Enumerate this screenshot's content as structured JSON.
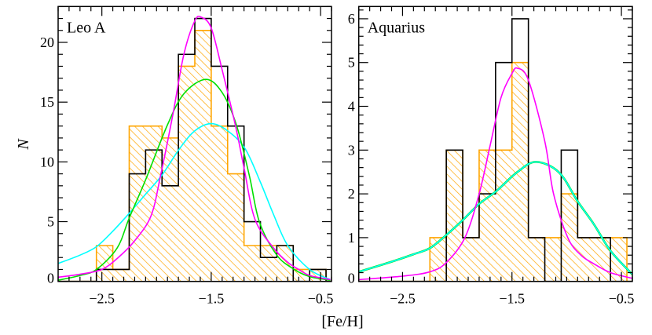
{
  "figure": {
    "xlabel": "[Fe/H]",
    "ylabel": "N"
  },
  "chart_data": [
    {
      "type": "bar",
      "label": "Leo A",
      "xlabel": "[Fe/H]",
      "ylabel": "N",
      "xlim": [
        -2.9,
        -0.4
      ],
      "ylim": [
        0,
        23
      ],
      "x_major_ticks": [
        -2.5,
        -1.5,
        -0.5
      ],
      "x_tick_labels": [
        "−2.5",
        "−1.5",
        "−0.5"
      ],
      "y_major_ticks": [
        0,
        5,
        10,
        15,
        20
      ],
      "y_tick_labels": [
        "0",
        "5",
        "10",
        "15",
        "20"
      ],
      "bin_edges": [
        -2.55,
        -2.4,
        -2.25,
        -2.1,
        -1.95,
        -1.8,
        -1.65,
        -1.5,
        -1.35,
        -1.2,
        -1.05,
        -0.9,
        -0.75,
        -0.6,
        -0.45
      ],
      "histograms": [
        {
          "color": "#FFA500",
          "hatched": true,
          "values": [
            3,
            1,
            13,
            13,
            12,
            18,
            21,
            13,
            9,
            3,
            3,
            3,
            1,
            1
          ]
        },
        {
          "color": "#000000",
          "hatched": false,
          "values": [
            1,
            1,
            9,
            11,
            8,
            19,
            22,
            18,
            13,
            5,
            2,
            3,
            0,
            1
          ]
        }
      ],
      "curves": [
        {
          "color": "#00FFFF",
          "x": [
            -2.9,
            -2.7,
            -2.55,
            -2.4,
            -2.24,
            -2.1,
            -1.95,
            -1.79,
            -1.65,
            -1.5,
            -1.35,
            -1.19,
            -1.05,
            -0.93,
            -0.8,
            -0.6,
            -0.41
          ],
          "y": [
            1.5,
            2.2,
            2.9,
            4.2,
            5.8,
            7.3,
            8.9,
            11.1,
            12.6,
            13.2,
            12.6,
            11.1,
            8.3,
            5.6,
            3.0,
            1.0,
            0.15
          ]
        },
        {
          "color": "#00E000",
          "x": [
            -2.9,
            -2.7,
            -2.55,
            -2.36,
            -2.25,
            -2.1,
            -1.9,
            -1.75,
            -1.55,
            -1.4,
            -1.27,
            -1.15,
            -1.06,
            -0.9,
            -0.74,
            -0.6,
            -0.41
          ],
          "y": [
            0.1,
            0.5,
            1.0,
            2.8,
            5.3,
            8.5,
            13.1,
            15.7,
            16.9,
            15.8,
            13.1,
            8.8,
            5.0,
            2.2,
            1.0,
            0.4,
            0.1
          ]
        },
        {
          "color": "#FF00FF",
          "x": [
            -2.9,
            -2.7,
            -2.5,
            -2.35,
            -2.2,
            -2.05,
            -1.96,
            -1.85,
            -1.75,
            -1.65,
            -1.59,
            -1.5,
            -1.4,
            -1.28,
            -1.2,
            -1.1,
            -0.93,
            -0.8,
            -0.7,
            -0.6,
            -0.41
          ],
          "y": [
            0.35,
            0.6,
            1.0,
            2.0,
            3.4,
            5.5,
            9.0,
            14.0,
            19.0,
            21.8,
            22.1,
            21.2,
            17.7,
            13.1,
            9.5,
            5.2,
            2.8,
            1.6,
            1.0,
            0.5,
            0.15
          ]
        }
      ]
    },
    {
      "type": "bar",
      "label": "Aquarius",
      "xlabel": "[Fe/H]",
      "ylabel": "",
      "xlim": [
        -2.9,
        -0.4
      ],
      "ylim": [
        0,
        6.28
      ],
      "x_major_ticks": [
        -2.5,
        -1.5,
        -0.5
      ],
      "x_tick_labels": [
        "−2.5",
        "−1.5",
        "−0.5"
      ],
      "y_major_ticks": [
        0,
        1,
        2,
        3,
        4,
        5,
        6
      ],
      "y_tick_labels": [
        "0",
        "1",
        "2",
        "3",
        "4",
        "5",
        "6"
      ],
      "bin_edges": [
        -2.25,
        -2.1,
        -1.95,
        -1.8,
        -1.65,
        -1.5,
        -1.35,
        -1.2,
        -1.05,
        -0.9,
        -0.75,
        -0.6,
        -0.45
      ],
      "histograms": [
        {
          "color": "#FFA500",
          "hatched": true,
          "values": [
            1,
            3,
            1,
            3,
            3,
            5,
            1,
            1,
            2,
            1,
            1,
            1
          ]
        },
        {
          "color": "#000000",
          "hatched": false,
          "values": [
            0,
            3,
            1,
            2,
            5,
            6,
            1,
            0,
            3,
            1,
            1,
            0
          ]
        }
      ],
      "curves": [
        {
          "color": "#00E000",
          "x": [
            -2.9,
            -2.6,
            -2.4,
            -2.25,
            -2.1,
            -1.95,
            -1.8,
            -1.64,
            -1.45,
            -1.28,
            -1.07,
            -0.9,
            -0.75,
            -0.6,
            -0.4
          ],
          "y": [
            0.22,
            0.45,
            0.62,
            0.76,
            1.06,
            1.4,
            1.77,
            2.07,
            2.5,
            2.73,
            2.49,
            1.83,
            1.3,
            0.7,
            0.16
          ]
        },
        {
          "color": "#00FFFF",
          "x": [
            -2.9,
            -2.6,
            -2.4,
            -2.25,
            -2.1,
            -1.95,
            -1.8,
            -1.64,
            -1.45,
            -1.28,
            -1.07,
            -0.9,
            -0.75,
            -0.6,
            -0.4
          ],
          "y": [
            0.22,
            0.45,
            0.62,
            0.76,
            1.06,
            1.4,
            1.77,
            2.07,
            2.5,
            2.73,
            2.49,
            1.83,
            1.3,
            0.7,
            0.16
          ]
        },
        {
          "color": "#FF00FF",
          "x": [
            -2.9,
            -2.5,
            -2.25,
            -2.1,
            -1.93,
            -1.8,
            -1.7,
            -1.6,
            -1.5,
            -1.45,
            -1.35,
            -1.2,
            -1.12,
            -0.99,
            -0.87,
            -0.75,
            -0.6,
            -0.4
          ],
          "y": [
            0.04,
            0.12,
            0.22,
            0.43,
            1.0,
            2.0,
            3.1,
            4.2,
            4.75,
            4.87,
            4.6,
            3.2,
            2.0,
            1.0,
            0.6,
            0.4,
            0.2,
            0.07
          ]
        }
      ]
    }
  ]
}
